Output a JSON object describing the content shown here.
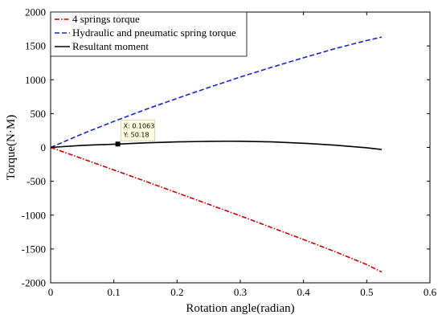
{
  "chart_data": {
    "type": "line",
    "xlabel": "Rotation angle(radian)",
    "ylabel": "Torque(N·M)",
    "xlim": [
      0,
      0.6
    ],
    "ylim": [
      -2000,
      2000
    ],
    "xticks": [
      0,
      0.1,
      0.2,
      0.3,
      0.4,
      0.5,
      0.6
    ],
    "yticks": [
      -2000,
      -1500,
      -1000,
      -500,
      0,
      500,
      1000,
      1500,
      2000
    ],
    "xtick_labels": [
      "0",
      "0.1",
      "0.2",
      "0.3",
      "0.4",
      "0.5",
      "0.6"
    ],
    "ytick_labels": [
      "-2000",
      "-1500",
      "-1000",
      "-500",
      "0",
      "500",
      "1000",
      "1500",
      "2000"
    ],
    "grid": false,
    "legend_position": "top-left",
    "series": [
      {
        "name": "4 springs torque",
        "color": "#cc0000",
        "style": "dashdot",
        "x": [
          0,
          0.05,
          0.1,
          0.15,
          0.2,
          0.25,
          0.3,
          0.35,
          0.4,
          0.45,
          0.5,
          0.5236
        ],
        "y": [
          0,
          -165,
          -333,
          -500,
          -670,
          -840,
          -1010,
          -1185,
          -1360,
          -1540,
          -1730,
          -1840
        ]
      },
      {
        "name": "Hydraulic and pneumatic spring torque",
        "color": "#1428c8",
        "style": "dashed",
        "x": [
          0,
          0.05,
          0.1,
          0.15,
          0.2,
          0.25,
          0.3,
          0.35,
          0.4,
          0.45,
          0.5,
          0.5236
        ],
        "y": [
          0,
          200,
          385,
          560,
          725,
          885,
          1040,
          1185,
          1325,
          1460,
          1580,
          1630
        ]
      },
      {
        "name": "Resultant moment",
        "color": "#000000",
        "style": "solid",
        "x": [
          0,
          0.05,
          0.1063,
          0.15,
          0.2,
          0.25,
          0.28,
          0.3,
          0.35,
          0.4,
          0.45,
          0.5,
          0.5236
        ],
        "y": [
          0,
          30,
          50.18,
          68,
          82,
          90,
          92,
          91,
          82,
          62,
          33,
          -5,
          -30
        ]
      }
    ],
    "annotations": [
      {
        "x": 0.1063,
        "y": 50.18,
        "series": "Resultant moment",
        "line1": "X: 0.1063",
        "line2": "Y: 50.18"
      }
    ]
  }
}
